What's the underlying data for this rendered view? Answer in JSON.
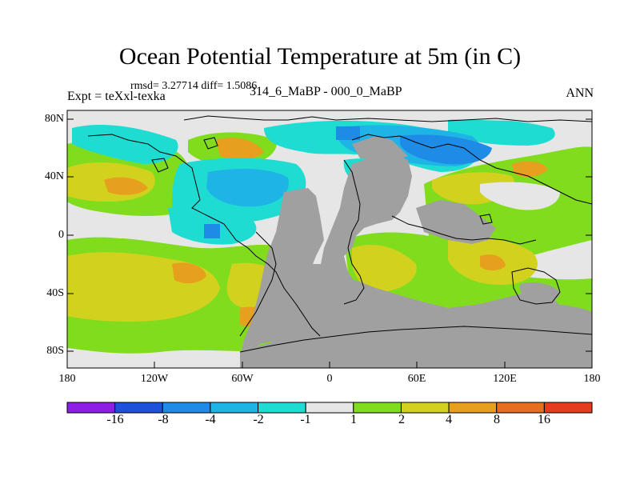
{
  "title": "Ocean Potential Temperature at 5m (in C)",
  "stats": "rmsd= 3.27714 diff= 1.5086",
  "experiment": "Expt = teXxl-texka",
  "comparison": "314_6_MaBP - 000_0_MaBP",
  "season": "ANN",
  "y_axis_labels": [
    "80N",
    "40N",
    "0",
    "40S",
    "80S"
  ],
  "x_axis_labels": [
    "180",
    "120W",
    "60W",
    "0",
    "60E",
    "120E",
    "180"
  ],
  "colorbar": {
    "levels": [
      "-16",
      "-8",
      "-4",
      "-2",
      "-1",
      "1",
      "2",
      "4",
      "8",
      "16"
    ],
    "colors": [
      "#8c1ee6",
      "#1e50dc",
      "#1e8ce6",
      "#1eb4e6",
      "#1edcd2",
      "#e6e6e6",
      "#82dc1e",
      "#d2d21e",
      "#e6a01e",
      "#e66e1e",
      "#e63c1e"
    ]
  },
  "map_colors": {
    "land": "#a0a0a0",
    "near_zero": "#e6e6e6",
    "coastline": "#000000"
  }
}
